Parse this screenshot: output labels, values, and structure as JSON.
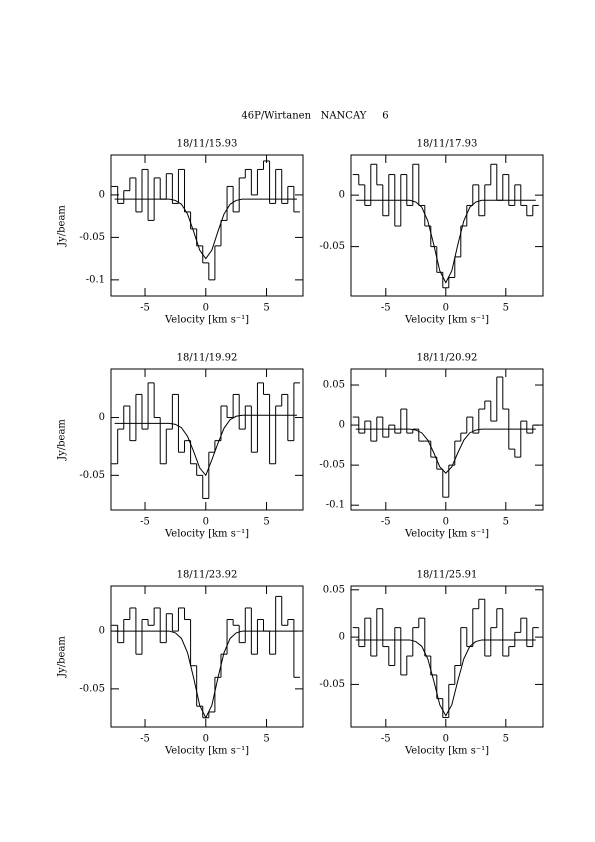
{
  "title": "46P/Wirtanen   NANCAY     6",
  "chart_data": [
    {
      "type": "spectrum",
      "title": "18/11/15.93",
      "xlabel": "Velocity [km s⁻¹]",
      "ylabel": "Jy/beam",
      "x": [
        -7.5,
        -7,
        -6.5,
        -6,
        -5.5,
        -5,
        -4.5,
        -4,
        -3.5,
        -3,
        -2.5,
        -2,
        -1.5,
        -1,
        -0.5,
        0,
        0.5,
        1,
        1.5,
        2,
        2.5,
        3,
        3.5,
        4,
        4.5,
        5,
        5.5,
        6,
        6.5,
        7,
        7.5
      ],
      "series": [
        {
          "style": "steps",
          "color": "#000000",
          "values": [
            0.01,
            -0.01,
            0.005,
            0.02,
            -0.02,
            0.03,
            -0.03,
            0.02,
            -0.005,
            0.025,
            -0.01,
            0.03,
            -0.02,
            -0.04,
            -0.06,
            -0.08,
            -0.1,
            -0.06,
            -0.03,
            0.01,
            -0.02,
            0.02,
            0.03,
            0,
            0.03,
            0.04,
            -0.01,
            0.03,
            -0.01,
            0.01,
            -0.02
          ]
        },
        {
          "style": "line",
          "color": "#000000",
          "values": [
            -0.005,
            -0.005,
            -0.005,
            -0.005,
            -0.005,
            -0.005,
            -0.005,
            -0.005,
            -0.005,
            -0.005,
            -0.0065,
            -0.011,
            -0.0225,
            -0.043,
            -0.065,
            -0.075,
            -0.065,
            -0.043,
            -0.0225,
            -0.011,
            -0.0065,
            -0.005,
            -0.005,
            -0.005,
            -0.005,
            -0.005,
            -0.005,
            -0.005,
            -0.005,
            -0.005,
            -0.005
          ]
        }
      ],
      "xlim": [
        -7.8,
        8
      ],
      "ylim": [
        -0.119,
        0.047
      ],
      "xticks": [
        -5,
        0,
        5
      ],
      "yticks": [
        -0.1,
        -0.05,
        0
      ]
    },
    {
      "type": "spectrum",
      "title": "18/11/17.93",
      "xlabel": "Velocity [km s⁻¹]",
      "x": [
        -7.5,
        -7,
        -6.5,
        -6,
        -5.5,
        -5,
        -4.5,
        -4,
        -3.5,
        -3,
        -2.5,
        -2,
        -1.5,
        -1,
        -0.5,
        0,
        0.5,
        1,
        1.5,
        2,
        2.5,
        3,
        3.5,
        4,
        4.5,
        5,
        5.5,
        6,
        6.5,
        7,
        7.5
      ],
      "series": [
        {
          "style": "steps",
          "color": "#000000",
          "values": [
            0.02,
            0.01,
            -0.01,
            0.03,
            0.01,
            -0.02,
            0.02,
            -0.03,
            0.02,
            -0.01,
            0.03,
            -0.01,
            -0.03,
            -0.05,
            -0.075,
            -0.09,
            -0.08,
            -0.06,
            -0.03,
            -0.01,
            0.01,
            -0.02,
            0.01,
            0.03,
            -0.005,
            0.02,
            -0.01,
            0.01,
            -0.01,
            -0.02,
            -0.01
          ]
        },
        {
          "style": "line",
          "color": "#000000",
          "values": [
            -0.005,
            -0.005,
            -0.005,
            -0.005,
            -0.005,
            -0.005,
            -0.005,
            -0.005,
            -0.005,
            -0.005,
            -0.0067,
            -0.0118,
            -0.025,
            -0.0482,
            -0.0736,
            -0.085,
            -0.0736,
            -0.0482,
            -0.025,
            -0.0118,
            -0.0067,
            -0.005,
            -0.005,
            -0.005,
            -0.005,
            -0.005,
            -0.005,
            -0.005,
            -0.005,
            -0.005,
            -0.005
          ]
        }
      ],
      "xlim": [
        -7.9,
        8.1
      ],
      "ylim": [
        -0.098,
        0.039
      ],
      "xticks": [
        -5,
        0,
        5
      ],
      "yticks": [
        -0.05,
        0
      ]
    },
    {
      "type": "spectrum",
      "title": "18/11/19.92",
      "xlabel": "Velocity [km s⁻¹]",
      "ylabel": "Jy/beam",
      "x": [
        -7.5,
        -7,
        -6.5,
        -6,
        -5.5,
        -5,
        -4.5,
        -4,
        -3.5,
        -3,
        -2.5,
        -2,
        -1.5,
        -1,
        -0.5,
        0,
        0.5,
        1,
        1.5,
        2,
        2.5,
        3,
        3.5,
        4,
        4.5,
        5,
        5.5,
        6,
        6.5,
        7,
        7.5
      ],
      "series": [
        {
          "style": "steps",
          "color": "#000000",
          "values": [
            -0.04,
            -0.01,
            0.01,
            -0.02,
            0.02,
            -0.01,
            0.03,
            0,
            -0.04,
            -0.01,
            0.02,
            -0.03,
            -0.02,
            -0.04,
            -0.05,
            -0.07,
            -0.03,
            -0.02,
            0.01,
            0,
            0.02,
            -0.01,
            0.01,
            -0.03,
            0.03,
            0.02,
            -0.04,
            0.01,
            0.02,
            -0.02,
            0.03
          ]
        },
        {
          "style": "line",
          "color": "#000000",
          "values": [
            -0.005,
            -0.005,
            -0.005,
            -0.005,
            -0.005,
            -0.005,
            -0.005,
            -0.005,
            -0.005,
            -0.005,
            -0.0059,
            -0.0088,
            -0.0163,
            -0.0293,
            -0.0436,
            -0.05,
            -0.0366,
            -0.0223,
            -0.0093,
            -0.0018,
            0.0011,
            0.002,
            0.002,
            0.002,
            0.002,
            0.002,
            0.002,
            0.002,
            0.002,
            0.002,
            0.002
          ]
        }
      ],
      "xlim": [
        -7.8,
        8
      ],
      "ylim": [
        -0.08,
        0.042
      ],
      "xticks": [
        -5,
        0,
        5
      ],
      "yticks": [
        -0.05,
        0
      ]
    },
    {
      "type": "spectrum",
      "title": "18/11/20.92",
      "xlabel": "Velocity [km s⁻¹]",
      "x": [
        -7.5,
        -7,
        -6.5,
        -6,
        -5.5,
        -5,
        -4.5,
        -4,
        -3.5,
        -3,
        -2.5,
        -2,
        -1.5,
        -1,
        -0.5,
        0,
        0.5,
        1,
        1.5,
        2,
        2.5,
        3,
        3.5,
        4,
        4.5,
        5,
        5.5,
        6,
        6.5,
        7,
        7.5
      ],
      "series": [
        {
          "style": "steps",
          "color": "#000000",
          "values": [
            0.01,
            -0.01,
            0.005,
            -0.02,
            0.01,
            -0.015,
            0,
            -0.01,
            0.02,
            -0.01,
            -0.005,
            -0.02,
            -0.02,
            -0.04,
            -0.055,
            -0.09,
            -0.05,
            -0.02,
            -0.01,
            0.01,
            -0.01,
            0.02,
            0.03,
            0.005,
            0.06,
            0.02,
            -0.03,
            -0.04,
            0.005,
            -0.01,
            0
          ]
        },
        {
          "style": "line",
          "color": "#000000",
          "values": [
            -0.005,
            -0.005,
            -0.005,
            -0.005,
            -0.005,
            -0.005,
            -0.005,
            -0.005,
            -0.005,
            -0.005,
            -0.0062,
            -0.0097,
            -0.0188,
            -0.0347,
            -0.0521,
            -0.06,
            -0.0521,
            -0.0347,
            -0.0188,
            -0.0097,
            -0.0062,
            -0.005,
            -0.005,
            -0.005,
            -0.005,
            -0.005,
            -0.005,
            -0.005,
            -0.005,
            -0.005,
            -0.005
          ]
        }
      ],
      "xlim": [
        -7.9,
        8.1
      ],
      "ylim": [
        -0.106,
        0.07
      ],
      "xticks": [
        -5,
        0,
        5
      ],
      "yticks": [
        -0.1,
        -0.05,
        0,
        0.05
      ]
    },
    {
      "type": "spectrum",
      "title": "18/11/23.92",
      "xlabel": "Velocity [km s⁻¹]",
      "ylabel": "Jy/beam",
      "x": [
        -7.5,
        -7,
        -6.5,
        -6,
        -5.5,
        -5,
        -4.5,
        -4,
        -3.5,
        -3,
        -2.5,
        -2,
        -1.5,
        -1,
        -0.5,
        0,
        0.5,
        1,
        1.5,
        2,
        2.5,
        3,
        3.5,
        4,
        4.5,
        5,
        5.5,
        6,
        6.5,
        7,
        7.5
      ],
      "series": [
        {
          "style": "steps",
          "color": "#000000",
          "values": [
            0.005,
            -0.01,
            0.01,
            0.02,
            -0.02,
            0.01,
            0.005,
            0.02,
            -0.01,
            0.015,
            0,
            0.02,
            0.01,
            -0.03,
            -0.065,
            -0.075,
            -0.07,
            -0.04,
            -0.02,
            0.01,
            0.005,
            -0.01,
            0.02,
            -0.02,
            0.01,
            0,
            -0.02,
            0.03,
            0.005,
            0.01,
            -0.04
          ]
        },
        {
          "style": "line",
          "color": "#000000",
          "values": [
            0,
            0,
            0,
            0,
            0,
            0,
            0,
            0,
            0,
            0,
            -0.0016,
            -0.0064,
            -0.0188,
            -0.0405,
            -0.0643,
            -0.075,
            -0.0643,
            -0.0405,
            -0.0188,
            -0.0064,
            -0.0016,
            0,
            0,
            0,
            0,
            0,
            0,
            0,
            0,
            0,
            0
          ]
        }
      ],
      "xlim": [
        -7.8,
        8
      ],
      "ylim": [
        -0.083,
        0.039
      ],
      "xticks": [
        -5,
        0,
        5
      ],
      "yticks": [
        -0.05,
        0
      ]
    },
    {
      "type": "spectrum",
      "title": "18/11/25.91",
      "xlabel": "Velocity [km s⁻¹]",
      "x": [
        -7.5,
        -7,
        -6.5,
        -6,
        -5.5,
        -5,
        -4.5,
        -4,
        -3.5,
        -3,
        -2.5,
        -2,
        -1.5,
        -1,
        -0.5,
        0,
        0.5,
        1,
        1.5,
        2,
        2.5,
        3,
        3.5,
        4,
        4.5,
        5,
        5.5,
        6,
        6.5,
        7,
        7.5
      ],
      "series": [
        {
          "style": "steps",
          "color": "#000000",
          "values": [
            0.01,
            -0.01,
            0.02,
            -0.02,
            0.03,
            -0.01,
            -0.03,
            0.01,
            -0.04,
            -0.02,
            0.01,
            0.02,
            -0.02,
            -0.04,
            -0.065,
            -0.085,
            -0.05,
            -0.03,
            0.01,
            -0.01,
            0.03,
            0.04,
            -0.02,
            0.01,
            0.03,
            -0.02,
            -0.01,
            0.005,
            0.02,
            -0.01,
            0.01
          ]
        },
        {
          "style": "line",
          "color": "#000000",
          "values": [
            -0.003,
            -0.003,
            -0.003,
            -0.003,
            -0.003,
            -0.003,
            -0.003,
            -0.003,
            -0.003,
            -0.003,
            -0.0047,
            -0.0098,
            -0.023,
            -0.0462,
            -0.0716,
            -0.083,
            -0.0716,
            -0.0462,
            -0.023,
            -0.0098,
            -0.0047,
            -0.003,
            -0.003,
            -0.003,
            -0.003,
            -0.003,
            -0.003,
            -0.003,
            -0.003,
            -0.003,
            -0.003
          ]
        }
      ],
      "xlim": [
        -7.9,
        8.1
      ],
      "ylim": [
        -0.095,
        0.054
      ],
      "xticks": [
        -5,
        0,
        5
      ],
      "yticks": [
        -0.05,
        0,
        0.05
      ]
    }
  ]
}
